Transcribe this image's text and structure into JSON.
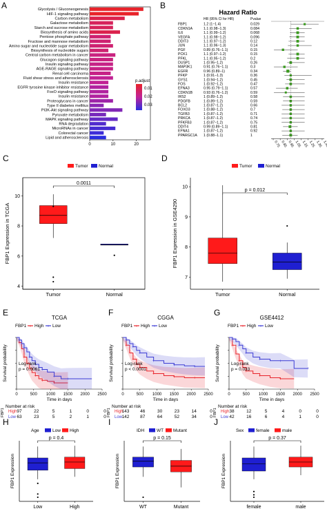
{
  "panel_labels": [
    "A",
    "B",
    "C",
    "D",
    "E",
    "F",
    "G",
    "H",
    "I",
    "J"
  ],
  "chart_data": [
    {
      "panel": "A",
      "type": "bar",
      "categories": [
        "Glycolysis / Gluconeogenesis",
        "HIF-1 signaling pathway",
        "Carbon metabolism",
        "Galactose metabolism",
        "Starch and sucrose metabolism",
        "Biosynthesis of amino acids",
        "Pentose phosphate pathway",
        "Fructose and mannose metabolism",
        "Amino sugar and nucleotide sugar metabolism",
        "Biosynthesis of nucleotide sugars",
        "Central carbon metabolism in cancer",
        "Glucagon signaling pathway",
        "Insulin signaling pathway",
        "AGE-RAGE signaling pathway",
        "Renal cell carcinoma",
        "Fluid shear stress and atherosclerosis",
        "Insulin resistance",
        "EGFR tyrosine kinase inhibitor resistance",
        "FoxO signaling pathway",
        "Insulin resistance",
        "Proteoglycans in cancer",
        "Type II diabetes mellitus",
        "PI3K-Akt signaling pathway",
        "Pyruvate metabolism",
        "MAPK signaling pathway",
        "RNA degradation",
        "MicroRNAs in cancer",
        "Colorectal cancer",
        "Lipid and atherosclerosis"
      ],
      "values": [
        23,
        21,
        15,
        10,
        10,
        13,
        9,
        9,
        10,
        8,
        11,
        10,
        10,
        10,
        9,
        10,
        8,
        8,
        8,
        8,
        10,
        6,
        14,
        7,
        12,
        7,
        11,
        6,
        7
      ],
      "padjust": [
        0.005,
        0.005,
        0.01,
        0.012,
        0.012,
        0.01,
        0.015,
        0.015,
        0.015,
        0.015,
        0.017,
        0.017,
        0.018,
        0.018,
        0.018,
        0.02,
        0.02,
        0.022,
        0.022,
        0.022,
        0.024,
        0.026,
        0.027,
        0.028,
        0.03,
        0.032,
        0.033,
        0.034,
        0.036
      ],
      "x_ticks": [
        "0",
        "10",
        "20"
      ],
      "xlim": [
        0,
        26
      ],
      "legend_title": "p.adjust",
      "legend_ticks": [
        "0.01",
        "0.02",
        "0.03"
      ],
      "colors": {
        "low": "#e8232a",
        "mid": "#c02298",
        "high": "#2a2ee0"
      }
    },
    {
      "panel": "B",
      "type": "forest",
      "title": "Hazard Ratio",
      "col_hr": "HR (95% CI for HR)",
      "col_p": "Pvalue",
      "rows": [
        {
          "gene": "FBP1",
          "hr_text": "1.2 (1−1.4)",
          "p": "0.029",
          "hr": 1.2,
          "lo": 1.0,
          "hi": 1.4
        },
        {
          "gene": "CDKN1A",
          "hr_text": "1.1 (0.98−1.3)",
          "p": "0.084",
          "hr": 1.1,
          "lo": 0.98,
          "hi": 1.3
        },
        {
          "gene": "IL6",
          "hr_text": "1.1 (0.99−1.2)",
          "p": "0.068",
          "hr": 1.1,
          "lo": 0.99,
          "hi": 1.2
        },
        {
          "gene": "VEGFA",
          "hr_text": "1.1 (0.98−1.2)",
          "p": "0.096",
          "hr": 1.1,
          "lo": 0.98,
          "hi": 1.2
        },
        {
          "gene": "DDIT3",
          "hr_text": "1.1 (0.97−1.2)",
          "p": "0.12",
          "hr": 1.1,
          "lo": 0.97,
          "hi": 1.2
        },
        {
          "gene": "JUN",
          "hr_text": "1.1 (0.96−1.3)",
          "p": "0.14",
          "hr": 1.1,
          "lo": 0.96,
          "hi": 1.3
        },
        {
          "gene": "PGF",
          "hr_text": "0.89 (0.76−1.1)",
          "p": "0.15",
          "hr": 0.89,
          "lo": 0.76,
          "hi": 1.1
        },
        {
          "gene": "PCK1",
          "hr_text": "1.1 (0.97−1.2)",
          "p": "0.15",
          "hr": 1.1,
          "lo": 0.97,
          "hi": 1.2
        },
        {
          "gene": "PFKL",
          "hr_text": "1.1 (0.95−1.2)",
          "p": "0.2",
          "hr": 1.1,
          "lo": 0.95,
          "hi": 1.2
        },
        {
          "gene": "DUSP1",
          "hr_text": "1 (0.95−1.2)",
          "p": "0.26",
          "hr": 1.0,
          "lo": 0.95,
          "hi": 1.2
        },
        {
          "gene": "MAP3K1",
          "hr_text": "0.91 (0.76−1.1)",
          "p": "0.3",
          "hr": 0.91,
          "lo": 0.76,
          "hi": 1.1
        },
        {
          "gene": "EGFR",
          "hr_text": "0.96 (0.89−1)",
          "p": "0.34",
          "hr": 0.96,
          "lo": 0.89,
          "hi": 1.0
        },
        {
          "gene": "PFKP",
          "hr_text": "1 (0.91−1.3)",
          "p": "0.36",
          "hr": 1.0,
          "lo": 0.91,
          "hi": 1.3
        },
        {
          "gene": "GYS1",
          "hr_text": "1 (0.94−1.2)",
          "p": "0.45",
          "hr": 1.0,
          "lo": 0.94,
          "hi": 1.2
        },
        {
          "gene": "FOS",
          "hr_text": "1 (0.92−1.2)",
          "p": "0.47",
          "hr": 1.0,
          "lo": 0.92,
          "hi": 1.2
        },
        {
          "gene": "EFNA3",
          "hr_text": "0.95 (0.79−1.1)",
          "p": "0.57",
          "hr": 0.95,
          "lo": 0.79,
          "hi": 1.1
        },
        {
          "gene": "CDKN1B",
          "hr_text": "0.93 (0.76−1.2)",
          "p": "0.59",
          "hr": 0.93,
          "lo": 0.76,
          "hi": 1.2
        },
        {
          "gene": "IRS2",
          "hr_text": "1 (0.89−1.2)",
          "p": "0.58",
          "hr": 1.0,
          "lo": 0.89,
          "hi": 1.2
        },
        {
          "gene": "PDGFB",
          "hr_text": "1 (0.89−1.2)",
          "p": "0.59",
          "hr": 1.0,
          "lo": 0.89,
          "hi": 1.2
        },
        {
          "gene": "BCL2",
          "hr_text": "1 (0.87−1.2)",
          "p": "0.66",
          "hr": 1.0,
          "lo": 0.87,
          "hi": 1.2
        },
        {
          "gene": "FOXO3",
          "hr_text": "1 (0.88−1.2)",
          "p": "0.7",
          "hr": 1.0,
          "lo": 0.88,
          "hi": 1.2
        },
        {
          "gene": "TGFB3",
          "hr_text": "1 (0.87−1.2)",
          "p": "0.71",
          "hr": 1.0,
          "lo": 0.87,
          "hi": 1.2
        },
        {
          "gene": "PRKCA",
          "hr_text": "1 (0.87−1.2)",
          "p": "0.74",
          "hr": 1.0,
          "lo": 0.87,
          "hi": 1.2
        },
        {
          "gene": "PFKFB3",
          "hr_text": "1 (0.87−1.2)",
          "p": "0.75",
          "hr": 1.0,
          "lo": 0.87,
          "hi": 1.2
        },
        {
          "gene": "DDIT4",
          "hr_text": "0.99 (0.89−1.1)",
          "p": "0.81",
          "hr": 0.99,
          "lo": 0.89,
          "hi": 1.1
        },
        {
          "gene": "EFNA1",
          "hr_text": "1 (0.87−1.2)",
          "p": "0.92",
          "hr": 1.0,
          "lo": 0.87,
          "hi": 1.2
        },
        {
          "gene": "PPARGC1A",
          "hr_text": "1 (0.88−1.1)",
          "p": "1",
          "hr": 1.0,
          "lo": 0.88,
          "hi": 1.1
        }
      ],
      "x_ticks": [
        "0.75",
        "0.85",
        "0.95",
        "1.05",
        "1.15",
        "1.25",
        "1.35",
        "1.45"
      ],
      "xlim": [
        0.72,
        1.48
      ],
      "colors": {
        "marker": "#3a9a1e"
      }
    },
    {
      "panel": "C",
      "type": "boxplot",
      "ylabel": "FBP1 Expression in TCGA",
      "legend": [
        "Tumor",
        "Normal"
      ],
      "categories": [
        "Tumor",
        "Normal"
      ],
      "pvalue": "0.0011",
      "ylim": [
        3.8,
        11.2
      ],
      "y_ticks": [
        4,
        6,
        8,
        10
      ],
      "boxes": [
        {
          "min": 7.2,
          "q1": 8.15,
          "median": 8.7,
          "q3": 9.35,
          "max": 10.1
        },
        {
          "min": 6.75,
          "q1": 6.75,
          "median": 6.75,
          "q3": 6.8,
          "max": 6.8
        }
      ],
      "outliers": [
        [
          9.3,
          4.6,
          4.3
        ],
        [
          6.05
        ]
      ],
      "colors": {
        "tumor": "#ff1a1a",
        "normal": "#1f1fd1"
      }
    },
    {
      "panel": "D",
      "type": "boxplot",
      "ylabel": "FBP1 Expression in GSE4290",
      "legend": [
        "Tumor",
        "Normal"
      ],
      "categories": [
        "Tumor",
        "Normal"
      ],
      "pvalue": "p = 0.012",
      "ylim": [
        6.6,
        10.3
      ],
      "y_ticks": [
        7,
        8,
        9,
        10
      ],
      "boxes": [
        {
          "min": 6.85,
          "q1": 7.45,
          "median": 7.8,
          "q3": 8.3,
          "max": 10.05
        },
        {
          "min": 6.95,
          "q1": 7.25,
          "median": 7.5,
          "q3": 7.8,
          "max": 8.15
        }
      ],
      "outliers": [
        [],
        [
          8.7
        ]
      ],
      "colors": {
        "tumor": "#ff1a1a",
        "normal": "#1f1fd1"
      }
    },
    {
      "panel": "E",
      "type": "km",
      "title": "TCGA",
      "legend_label": "FBP1",
      "legend": [
        "High",
        "Low"
      ],
      "ylabel": "Survival probability",
      "xlabel": "Time in days",
      "x_ticks": [
        0,
        500,
        1000,
        1500,
        2000,
        2500
      ],
      "y_ticks": [
        "0.00",
        "0.25",
        "0.50",
        "0.75",
        "1.00"
      ],
      "pvalue_label": "Log-rank",
      "pvalue": "p = 0.0061",
      "curves": [
        {
          "name": "High",
          "times": [
            0,
            80,
            150,
            220,
            300,
            380,
            450,
            550,
            650,
            750,
            900,
            1100,
            1500
          ],
          "surv": [
            1,
            0.9,
            0.78,
            0.62,
            0.5,
            0.4,
            0.32,
            0.26,
            0.2,
            0.17,
            0.15,
            0.12,
            0.12
          ]
        },
        {
          "name": "Low",
          "times": [
            0,
            80,
            150,
            220,
            300,
            380,
            450,
            550,
            650,
            750,
            900,
            1100,
            1300,
            1500,
            2200
          ],
          "surv": [
            1,
            0.95,
            0.88,
            0.8,
            0.72,
            0.62,
            0.55,
            0.48,
            0.42,
            0.38,
            0.33,
            0.25,
            0.2,
            0.2,
            0.2
          ]
        }
      ],
      "risk_title": "Number at risk",
      "risk_label": "FBP1",
      "risk_rows": [
        [
          "97",
          "22",
          "5",
          "1",
          "0",
          "0"
        ],
        [
          "63",
          "23",
          "5",
          "2",
          "1",
          "0"
        ]
      ],
      "colors": {
        "high": "#e8232a",
        "low": "#3b3bd4"
      }
    },
    {
      "panel": "F",
      "type": "km",
      "title": "CGGA",
      "legend_label": "FBP1",
      "legend": [
        "High",
        "Low"
      ],
      "ylabel": "Survival probability",
      "xlabel": "Time in days",
      "x_ticks": [
        0,
        500,
        1000,
        1500,
        2000,
        2500
      ],
      "y_ticks": [
        "0.00",
        "0.25",
        "0.50",
        "0.75",
        "1.00"
      ],
      "pvalue_label": "Log-rank",
      "pvalue": "p < 0.0001",
      "curves": [
        {
          "name": "High",
          "times": [
            0,
            100,
            200,
            300,
            400,
            500,
            700,
            900,
            1200,
            1500,
            1800,
            2100,
            2400
          ],
          "surv": [
            1,
            0.85,
            0.7,
            0.58,
            0.48,
            0.42,
            0.35,
            0.3,
            0.26,
            0.24,
            0.22,
            0.22,
            0.22
          ]
        },
        {
          "name": "Low",
          "times": [
            0,
            100,
            200,
            300,
            400,
            500,
            700,
            900,
            1200,
            1500,
            1800,
            2100,
            2400
          ],
          "surv": [
            1,
            0.95,
            0.88,
            0.82,
            0.75,
            0.7,
            0.62,
            0.55,
            0.5,
            0.47,
            0.45,
            0.44,
            0.44
          ]
        }
      ],
      "risk_title": "Number at risk",
      "risk_label": "FBP1",
      "risk_rows": [
        [
          "143",
          "46",
          "30",
          "23",
          "14",
          "0"
        ],
        [
          "142",
          "87",
          "64",
          "52",
          "34",
          "0"
        ]
      ],
      "colors": {
        "high": "#e8232a",
        "low": "#3b3bd4"
      }
    },
    {
      "panel": "G",
      "type": "km",
      "title": "GSE4412",
      "legend_label": "FBP1",
      "legend": [
        "High",
        "Low"
      ],
      "ylabel": "Survival probability",
      "xlabel": "Time in days",
      "x_ticks": [
        0,
        500,
        1000,
        1500,
        2000,
        2500
      ],
      "y_ticks": [
        "0.00",
        "0.25",
        "0.50",
        "0.75",
        "1.00"
      ],
      "pvalue_label": "Log-rank",
      "pvalue": "p = 0.033",
      "curves": [
        {
          "name": "High",
          "times": [
            0,
            100,
            200,
            300,
            400,
            500,
            700,
            900,
            1200,
            1500,
            1900
          ],
          "surv": [
            1,
            0.85,
            0.68,
            0.55,
            0.42,
            0.35,
            0.3,
            0.26,
            0.22,
            0.2,
            0.2
          ]
        },
        {
          "name": "Low",
          "times": [
            0,
            100,
            200,
            300,
            400,
            500,
            700,
            900,
            1200,
            1500,
            1900,
            2300
          ],
          "surv": [
            1,
            0.97,
            0.92,
            0.85,
            0.78,
            0.7,
            0.62,
            0.58,
            0.55,
            0.55,
            0.4,
            0.4
          ]
        }
      ],
      "risk_title": "Number at risk",
      "risk_label": "FBP1",
      "risk_rows": [
        [
          "38",
          "12",
          "5",
          "4",
          "0",
          "0"
        ],
        [
          "42",
          "16",
          "6",
          "4",
          "1",
          "0"
        ]
      ],
      "colors": {
        "high": "#e8232a",
        "low": "#3b3bd4"
      }
    },
    {
      "panel": "H",
      "type": "boxplot",
      "ylabel": "FBP1 Expression",
      "legend_title": "Age",
      "legend": [
        "Low",
        "High"
      ],
      "categories": [
        "Low",
        "High"
      ],
      "pvalue": "p = 0.4",
      "ylim": [
        3.8,
        11.2
      ],
      "boxes": [
        {
          "min": 6.5,
          "q1": 7.6,
          "median": 8.5,
          "q3": 9.1,
          "max": 10.5
        },
        {
          "min": 6.8,
          "q1": 7.8,
          "median": 8.6,
          "q3": 9.2,
          "max": 10.6
        }
      ],
      "outliers": [
        [
          6.0,
          4.7,
          4.3
        ],
        []
      ],
      "colors": {
        "a": "#1f1fd1",
        "b": "#ff1a1a"
      }
    },
    {
      "panel": "I",
      "type": "boxplot",
      "ylabel": "FBP1 Expression",
      "legend_title": "IDH",
      "legend": [
        "WT",
        "Mutant"
      ],
      "categories": [
        "WT",
        "Mutant"
      ],
      "pvalue": "p = 0.15",
      "ylim": [
        3.8,
        11.2
      ],
      "boxes": [
        {
          "min": 6.8,
          "q1": 8.0,
          "median": 8.7,
          "q3": 9.2,
          "max": 10.5
        },
        {
          "min": 5.5,
          "q1": 7.4,
          "median": 8.1,
          "q3": 8.8,
          "max": 10.2
        }
      ],
      "outliers": [
        [
          4.3
        ],
        []
      ],
      "colors": {
        "a": "#1f1fd1",
        "b": "#ff1a1a"
      }
    },
    {
      "panel": "J",
      "type": "boxplot",
      "ylabel": "FBP1 Expression",
      "legend_title": "Sex",
      "legend": [
        "female",
        "male"
      ],
      "categories": [
        "female",
        "male"
      ],
      "pvalue": "p = 0.37",
      "ylim": [
        3.8,
        11.2
      ],
      "boxes": [
        {
          "min": 6.5,
          "q1": 7.5,
          "median": 8.4,
          "q3": 9.1,
          "max": 10.5
        },
        {
          "min": 7.0,
          "q1": 8.0,
          "median": 8.6,
          "q3": 9.2,
          "max": 10.6
        }
      ],
      "outliers": [
        [
          5.0,
          4.6,
          4.3
        ],
        []
      ],
      "colors": {
        "a": "#1f1fd1",
        "b": "#ff1a1a"
      }
    }
  ]
}
